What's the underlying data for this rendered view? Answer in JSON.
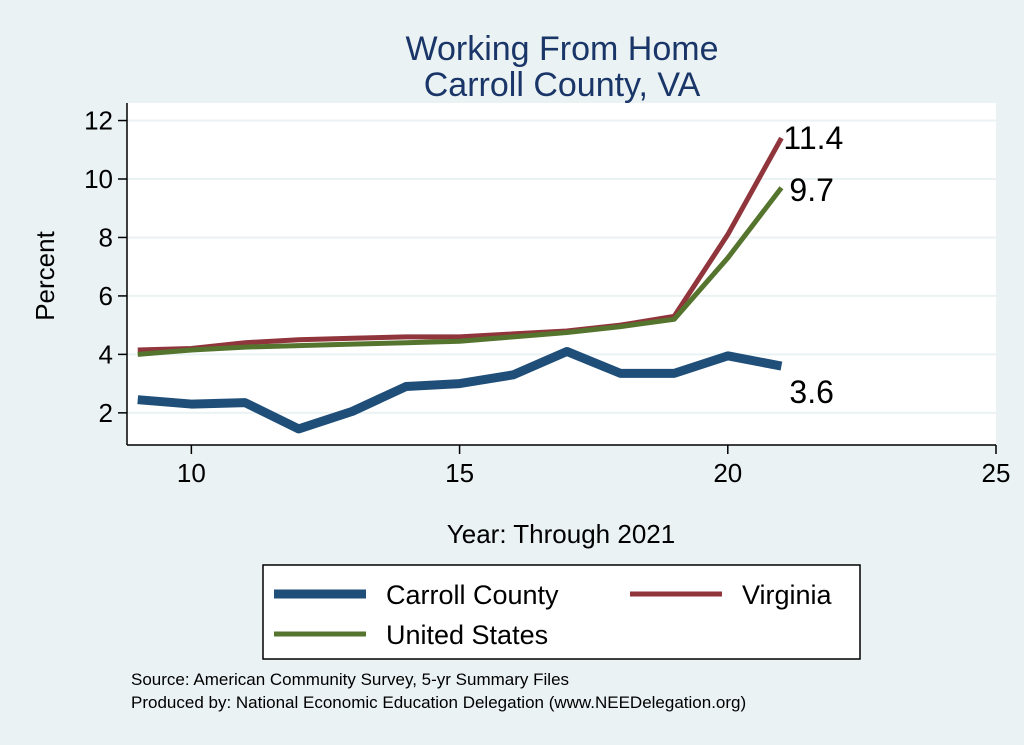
{
  "chart_data": {
    "type": "line",
    "title": [
      "Working From Home",
      "Carroll County, VA"
    ],
    "xlabel": "Year: Through 2021",
    "ylabel": "Percent",
    "xlim": [
      8.8,
      25
    ],
    "ylim": [
      0.9,
      12.6
    ],
    "xticks": [
      10,
      15,
      20,
      25
    ],
    "yticks": [
      2,
      4,
      6,
      8,
      10,
      12
    ],
    "grid": true,
    "legend_position": "bottom",
    "series": [
      {
        "name": "Carroll County",
        "color": "#1f4e79",
        "width": 9,
        "x": [
          9,
          10,
          11,
          12,
          13,
          14,
          15,
          16,
          17,
          18,
          19,
          20,
          21
        ],
        "values": [
          2.45,
          2.3,
          2.35,
          1.45,
          2.05,
          2.9,
          3.0,
          3.3,
          4.1,
          3.35,
          3.35,
          3.95,
          3.6
        ],
        "end_label": "3.6"
      },
      {
        "name": "Virginia",
        "color": "#90353b",
        "width": 5,
        "x": [
          9,
          10,
          11,
          12,
          13,
          14,
          15,
          16,
          17,
          18,
          19,
          20,
          21
        ],
        "values": [
          4.15,
          4.2,
          4.4,
          4.5,
          4.55,
          4.6,
          4.6,
          4.7,
          4.8,
          5.0,
          5.3,
          8.1,
          11.4
        ],
        "end_label": "11.4"
      },
      {
        "name": "United States",
        "color": "#55752f",
        "width": 5,
        "x": [
          9,
          10,
          11,
          12,
          13,
          14,
          15,
          16,
          17,
          18,
          19,
          20,
          21
        ],
        "values": [
          4.0,
          4.15,
          4.25,
          4.3,
          4.35,
          4.4,
          4.45,
          4.6,
          4.75,
          4.95,
          5.2,
          7.3,
          9.7
        ],
        "end_label": "9.7"
      }
    ]
  },
  "notes": [
    "Source: American Community Survey, 5-yr Summary Files",
    "Produced by: National Economic Education Delegation (www.NEEDelegation.org)"
  ]
}
